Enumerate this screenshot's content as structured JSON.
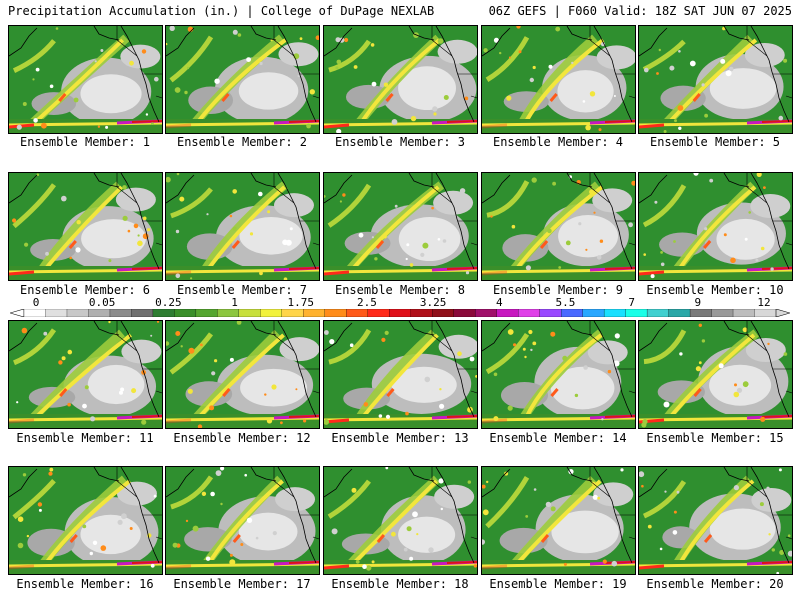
{
  "header": {
    "title": "Precipitation Accumulation (in.) | College of DuPage NEXLAB",
    "valid": "06Z GEFS | F060 Valid: 18Z SAT JUN 07 2025"
  },
  "panels": [
    {
      "label": "Ensemble Member: 1"
    },
    {
      "label": "Ensemble Member: 2"
    },
    {
      "label": "Ensemble Member: 3"
    },
    {
      "label": "Ensemble Member: 4"
    },
    {
      "label": "Ensemble Member: 5"
    },
    {
      "label": "Ensemble Member: 6"
    },
    {
      "label": "Ensemble Member: 7"
    },
    {
      "label": "Ensemble Member: 8"
    },
    {
      "label": "Ensemble Member: 9"
    },
    {
      "label": "Ensemble Member: 10"
    },
    {
      "label": "Ensemble Member: 11"
    },
    {
      "label": "Ensemble Member: 12"
    },
    {
      "label": "Ensemble Member: 13"
    },
    {
      "label": "Ensemble Member: 14"
    },
    {
      "label": "Ensemble Member: 15"
    },
    {
      "label": "Ensemble Member: 16"
    },
    {
      "label": "Ensemble Member: 17"
    },
    {
      "label": "Ensemble Member: 18"
    },
    {
      "label": "Ensemble Member: 19"
    },
    {
      "label": "Ensemble Member: 20"
    }
  ],
  "colorbar": {
    "labels": [
      "0",
      "0.05",
      "0.25",
      "1",
      "1.75",
      "2.5",
      "3.25",
      "4",
      "5.5",
      "7",
      "9",
      "12"
    ],
    "colors": [
      "#ffffff",
      "#e0e0e0",
      "#c8c8c8",
      "#b0b0b0",
      "#8c8c8c",
      "#707070",
      "#2e7d32",
      "#3a8f2a",
      "#55a630",
      "#8cc63f",
      "#c8e03c",
      "#f2f23c",
      "#ffd54a",
      "#ffb22e",
      "#ff8c1a",
      "#ff5a1a",
      "#ff2a1a",
      "#e0101a",
      "#b0101a",
      "#90101a",
      "#8a0a3a",
      "#a0106a",
      "#c818c0",
      "#e040e8",
      "#9a4aff",
      "#4a6aff",
      "#2aa8ff",
      "#1ae0ff",
      "#1affe8",
      "#40d0d0",
      "#2aa8a8",
      "#7a7a7a",
      "#9a9a9a",
      "#bdbdbd",
      "#d8d8d8"
    ]
  }
}
